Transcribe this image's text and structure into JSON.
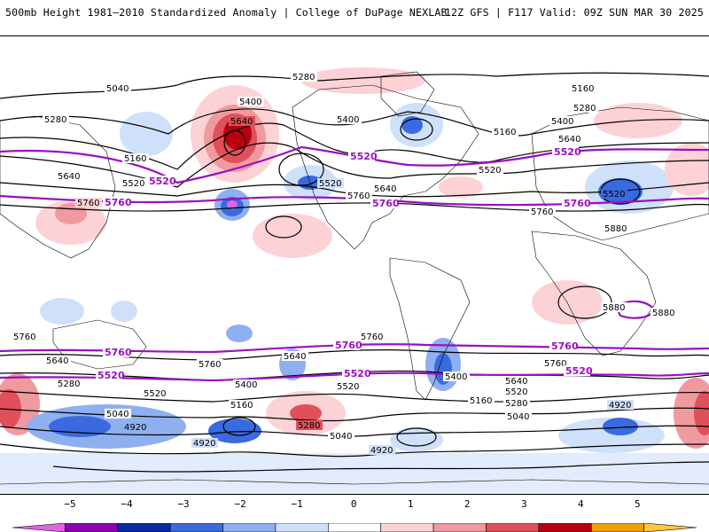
{
  "header": {
    "title_left": "500mb Height 1981–2010 Standardized Anomaly | College of DuPage NEXLAB",
    "title_right": "12Z GFS | F117 Valid: 09Z SUN MAR 30 2025"
  },
  "colorbar": {
    "tick_labels": [
      "−5",
      "−4",
      "−3",
      "−2",
      "−1",
      "0",
      "1",
      "2",
      "3",
      "4",
      "5"
    ],
    "colors": [
      "#e066e0",
      "#8c00b4",
      "#0a2aa8",
      "#3a6ae0",
      "#8fb0f0",
      "#cfe0fa",
      "#ffffff",
      "#fcd2d6",
      "#f09aa0",
      "#e0505a",
      "#b80010",
      "#f0a000",
      "#ffc840"
    ]
  },
  "map": {
    "contour_labels": {
      "black": [
        "5040",
        "5280",
        "5400",
        "5640",
        "5160",
        "5520",
        "5760",
        "5880",
        "4920"
      ],
      "purple": [
        "5520",
        "5760"
      ]
    },
    "colors": {
      "black_contour": "#000000",
      "purple_contour": "#9a10c0",
      "coastline": "#000000"
    }
  }
}
